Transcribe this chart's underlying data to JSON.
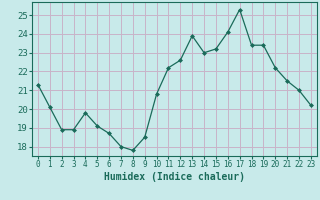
{
  "x": [
    0,
    1,
    2,
    3,
    4,
    5,
    6,
    7,
    8,
    9,
    10,
    11,
    12,
    13,
    14,
    15,
    16,
    17,
    18,
    19,
    20,
    21,
    22,
    23
  ],
  "y": [
    21.3,
    20.1,
    18.9,
    18.9,
    19.8,
    19.1,
    18.7,
    18.0,
    17.8,
    18.5,
    20.8,
    22.2,
    22.6,
    23.9,
    23.0,
    23.2,
    24.1,
    25.3,
    23.4,
    23.4,
    22.2,
    21.5,
    21.0,
    20.2
  ],
  "xlabel": "Humidex (Indice chaleur)",
  "ylim": [
    17.5,
    25.7
  ],
  "xlim": [
    -0.5,
    23.5
  ],
  "yticks": [
    18,
    19,
    20,
    21,
    22,
    23,
    24,
    25
  ],
  "xtick_labels": [
    "0",
    "1",
    "2",
    "3",
    "4",
    "5",
    "6",
    "7",
    "8",
    "9",
    "10",
    "11",
    "12",
    "13",
    "14",
    "15",
    "16",
    "17",
    "18",
    "19",
    "20",
    "21",
    "22",
    "23"
  ],
  "line_color": "#1a6b5a",
  "marker_color": "#1a6b5a",
  "bg_color": "#c8eaea",
  "grid_color": "#c8b4c8",
  "axis_color": "#1a6b5a",
  "tick_color": "#1a6b5a",
  "label_color": "#1a6b5a",
  "font_size_label": 7,
  "font_size_tick": 6.5
}
